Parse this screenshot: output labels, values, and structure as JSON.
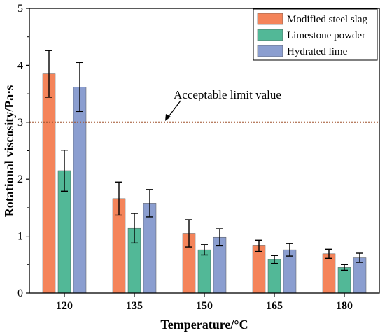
{
  "chart_data": {
    "type": "bar",
    "xlabel": "Temperature/°C",
    "ylabel": "Rotational viscosity/Pa·s",
    "categories": [
      "120",
      "135",
      "150",
      "165",
      "180"
    ],
    "ylim": [
      0,
      5
    ],
    "yticks": [
      "0",
      "1",
      "2",
      "3",
      "4",
      "5"
    ],
    "series": [
      {
        "name": "Modified steel slag",
        "color": "#f4845a",
        "values": [
          3.85,
          1.66,
          1.05,
          0.83,
          0.69
        ],
        "errors": [
          0.41,
          0.29,
          0.24,
          0.1,
          0.08
        ]
      },
      {
        "name": "Limestone powder",
        "color": "#52b897",
        "values": [
          2.15,
          1.14,
          0.76,
          0.59,
          0.45
        ],
        "errors": [
          0.36,
          0.26,
          0.09,
          0.07,
          0.05
        ]
      },
      {
        "name": "Hydrated lime",
        "color": "#8b9ed0",
        "values": [
          3.62,
          1.58,
          0.98,
          0.76,
          0.62
        ],
        "errors": [
          0.43,
          0.24,
          0.15,
          0.11,
          0.08
        ]
      }
    ],
    "reference_line": {
      "value": 3,
      "label": "Acceptable limit value",
      "color": "#a0522d"
    },
    "legend_position": "top-right",
    "grid": false
  }
}
